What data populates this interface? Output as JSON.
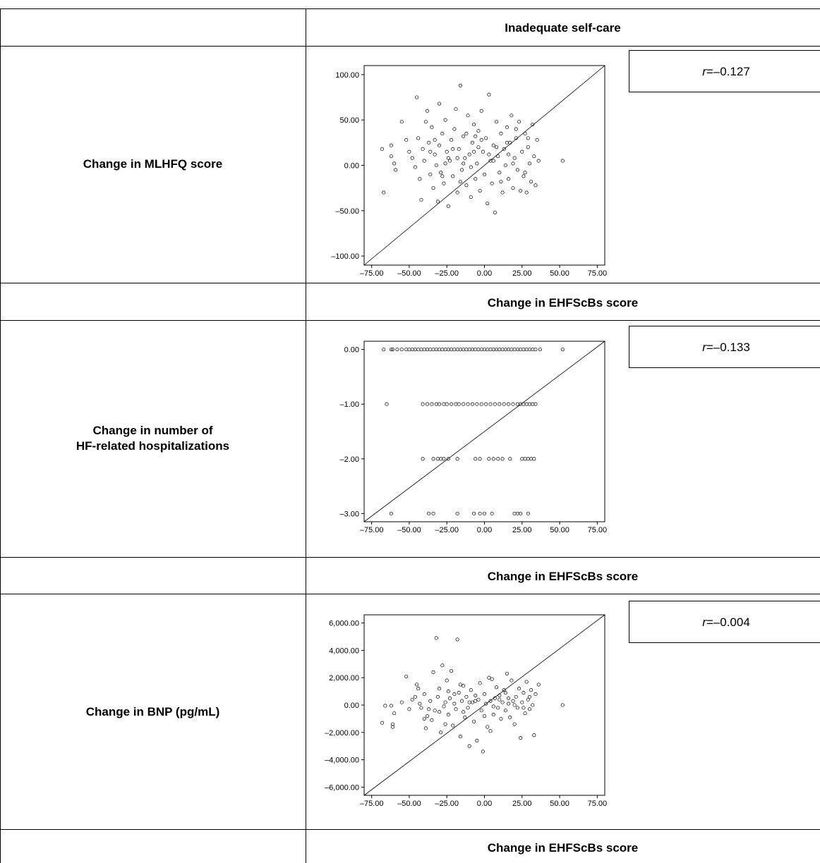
{
  "table": {
    "header_top": "Inadequate self-care",
    "x_axis_label": "Change in EHFScBs score",
    "rows": [
      {
        "label_lines": [
          "Change in MLHFQ score"
        ],
        "r_prefix": "r",
        "r_value": "=–0.127"
      },
      {
        "label_lines": [
          "Change in number of",
          "HF-related hospitalizations"
        ],
        "r_prefix": "r",
        "r_value": "=–0.133"
      },
      {
        "label_lines": [
          "Change in BNP (pg/mL)"
        ],
        "r_prefix": "r",
        "r_value": "=–0.004"
      }
    ]
  },
  "chart_data": [
    {
      "type": "scatter",
      "ylabel": "Change in MLHFQ score",
      "xlabel": "Change in EHFScBs score",
      "xlim": [
        -80,
        80
      ],
      "ylim": [
        -110,
        110
      ],
      "x_ticks": [
        "–75.00",
        "–50.00",
        "–25.00",
        "0.00",
        "25.00",
        "50.00",
        "75.00"
      ],
      "x_tick_values": [
        -75,
        -50,
        -25,
        0,
        25,
        50,
        75
      ],
      "y_ticks": [
        "100.00",
        "50.00",
        "0.00",
        "–50.00",
        "–100.00"
      ],
      "y_tick_values": [
        100,
        50,
        0,
        -50,
        -100
      ],
      "reference_line": "diagonal",
      "r": -0.127,
      "points": [
        [
          -67,
          -30
        ],
        [
          -68,
          18
        ],
        [
          -62,
          22
        ],
        [
          -62,
          10
        ],
        [
          -60,
          2
        ],
        [
          -59,
          -5
        ],
        [
          -55,
          48
        ],
        [
          -52,
          28
        ],
        [
          -50,
          15
        ],
        [
          -48,
          8
        ],
        [
          -45,
          75
        ],
        [
          -44,
          30
        ],
        [
          -43,
          -15
        ],
        [
          -42,
          -38
        ],
        [
          -41,
          18
        ],
        [
          -40,
          5
        ],
        [
          -38,
          60
        ],
        [
          -37,
          25
        ],
        [
          -36,
          -10
        ],
        [
          -35,
          42
        ],
        [
          -34,
          -25
        ],
        [
          -33,
          12
        ],
        [
          -32,
          0
        ],
        [
          -31,
          -40
        ],
        [
          -30,
          68
        ],
        [
          -30,
          22
        ],
        [
          -29,
          -8
        ],
        [
          -28,
          35
        ],
        [
          -27,
          -20
        ],
        [
          -26,
          50
        ],
        [
          -25,
          15
        ],
        [
          -24,
          -45
        ],
        [
          -23,
          5
        ],
        [
          -22,
          28
        ],
        [
          -21,
          -12
        ],
        [
          -20,
          40
        ],
        [
          -19,
          62
        ],
        [
          -18,
          -30
        ],
        [
          -17,
          18
        ],
        [
          -16,
          88
        ],
        [
          -15,
          -5
        ],
        [
          -14,
          32
        ],
        [
          -13,
          8
        ],
        [
          -12,
          -22
        ],
        [
          -11,
          55
        ],
        [
          -10,
          12
        ],
        [
          -9,
          -35
        ],
        [
          -8,
          25
        ],
        [
          -7,
          45
        ],
        [
          -6,
          -15
        ],
        [
          -5,
          2
        ],
        [
          -4,
          38
        ],
        [
          -3,
          -28
        ],
        [
          -2,
          60
        ],
        [
          -1,
          15
        ],
        [
          0,
          -10
        ],
        [
          1,
          30
        ],
        [
          2,
          -42
        ],
        [
          3,
          78
        ],
        [
          4,
          5
        ],
        [
          5,
          -20
        ],
        [
          6,
          22
        ],
        [
          7,
          -52
        ],
        [
          8,
          48
        ],
        [
          9,
          10
        ],
        [
          10,
          -8
        ],
        [
          11,
          35
        ],
        [
          12,
          -30
        ],
        [
          13,
          18
        ],
        [
          14,
          0
        ],
        [
          15,
          42
        ],
        [
          16,
          -15
        ],
        [
          17,
          25
        ],
        [
          18,
          55
        ],
        [
          19,
          -25
        ],
        [
          20,
          8
        ],
        [
          21,
          30
        ],
        [
          22,
          -5
        ],
        [
          23,
          48
        ],
        [
          24,
          -28
        ],
        [
          25,
          15
        ],
        [
          26,
          -12
        ],
        [
          27,
          35
        ],
        [
          28,
          -30
        ],
        [
          29,
          20
        ],
        [
          30,
          2
        ],
        [
          31,
          -18
        ],
        [
          32,
          45
        ],
        [
          33,
          10
        ],
        [
          34,
          -22
        ],
        [
          35,
          28
        ],
        [
          36,
          5
        ],
        [
          52,
          5
        ],
        [
          -46,
          -2
        ],
        [
          -39,
          48
        ],
        [
          -24,
          8
        ],
        [
          -14,
          2
        ],
        [
          -4,
          20
        ],
        [
          6,
          5
        ],
        [
          16,
          12
        ],
        [
          -33,
          28
        ],
        [
          -21,
          18
        ],
        [
          -9,
          -2
        ],
        [
          3,
          12
        ],
        [
          15,
          25
        ],
        [
          27,
          -8
        ],
        [
          -18,
          8
        ],
        [
          -7,
          15
        ],
        [
          11,
          -18
        ],
        [
          21,
          40
        ],
        [
          -28,
          -12
        ],
        [
          -12,
          35
        ],
        [
          -2,
          28
        ],
        [
          8,
          20
        ],
        [
          19,
          2
        ],
        [
          29,
          30
        ],
        [
          -36,
          15
        ],
        [
          -26,
          2
        ],
        [
          -16,
          -18
        ],
        [
          -6,
          32
        ]
      ]
    },
    {
      "type": "scatter",
      "ylabel": "Change in number of HF-related hospitalizations",
      "xlabel": "Change in EHFScBs score",
      "xlim": [
        -80,
        80
      ],
      "ylim": [
        -3.15,
        0.15
      ],
      "x_ticks": [
        "–75.00",
        "–50.00",
        "–25.00",
        "0.00",
        "25.00",
        "50.00",
        "75.00"
      ],
      "x_tick_values": [
        -75,
        -50,
        -25,
        0,
        25,
        50,
        75
      ],
      "y_ticks": [
        "0.00",
        "–1.00",
        "–2.00",
        "–3.00"
      ],
      "y_tick_values": [
        0,
        -1,
        -2,
        -3
      ],
      "reference_line": "diagonal",
      "r": -0.133,
      "points": [
        [
          -67,
          0
        ],
        [
          -62,
          0
        ],
        [
          -61,
          0
        ],
        [
          -58,
          0
        ],
        [
          -55,
          0
        ],
        [
          -52,
          0
        ],
        [
          -50,
          0
        ],
        [
          -48,
          0
        ],
        [
          -46,
          0
        ],
        [
          -44,
          0
        ],
        [
          -42,
          0
        ],
        [
          -40,
          0
        ],
        [
          -38,
          0
        ],
        [
          -36,
          0
        ],
        [
          -34,
          0
        ],
        [
          -32,
          0
        ],
        [
          -30,
          0
        ],
        [
          -28,
          0
        ],
        [
          -26,
          0
        ],
        [
          -24,
          0
        ],
        [
          -22,
          0
        ],
        [
          -20,
          0
        ],
        [
          -18,
          0
        ],
        [
          -16,
          0
        ],
        [
          -14,
          0
        ],
        [
          -12,
          0
        ],
        [
          -10,
          0
        ],
        [
          -8,
          0
        ],
        [
          -6,
          0
        ],
        [
          -4,
          0
        ],
        [
          -2,
          0
        ],
        [
          0,
          0
        ],
        [
          2,
          0
        ],
        [
          4,
          0
        ],
        [
          6,
          0
        ],
        [
          8,
          0
        ],
        [
          10,
          0
        ],
        [
          12,
          0
        ],
        [
          14,
          0
        ],
        [
          16,
          0
        ],
        [
          18,
          0
        ],
        [
          20,
          0
        ],
        [
          22,
          0
        ],
        [
          24,
          0
        ],
        [
          26,
          0
        ],
        [
          28,
          0
        ],
        [
          30,
          0
        ],
        [
          32,
          0
        ],
        [
          34,
          0
        ],
        [
          37,
          0
        ],
        [
          52,
          0
        ],
        [
          -65,
          -1
        ],
        [
          -41,
          -1
        ],
        [
          -38,
          -1
        ],
        [
          -35,
          -1
        ],
        [
          -32,
          -1
        ],
        [
          -30,
          -1
        ],
        [
          -27,
          -1
        ],
        [
          -25,
          -1
        ],
        [
          -22,
          -1
        ],
        [
          -19,
          -1
        ],
        [
          -17,
          -1
        ],
        [
          -14,
          -1
        ],
        [
          -11,
          -1
        ],
        [
          -8,
          -1
        ],
        [
          -5,
          -1
        ],
        [
          -2,
          -1
        ],
        [
          1,
          -1
        ],
        [
          4,
          -1
        ],
        [
          7,
          -1
        ],
        [
          10,
          -1
        ],
        [
          13,
          -1
        ],
        [
          16,
          -1
        ],
        [
          19,
          -1
        ],
        [
          22,
          -1
        ],
        [
          24,
          -1
        ],
        [
          26,
          -1
        ],
        [
          28,
          -1
        ],
        [
          30,
          -1
        ],
        [
          32,
          -1
        ],
        [
          34,
          -1
        ],
        [
          -41,
          -2
        ],
        [
          -34,
          -2
        ],
        [
          -31,
          -2
        ],
        [
          -29,
          -2
        ],
        [
          -27,
          -2
        ],
        [
          -24,
          -2
        ],
        [
          -18,
          -2
        ],
        [
          -6,
          -2
        ],
        [
          -3,
          -2
        ],
        [
          3,
          -2
        ],
        [
          6,
          -2
        ],
        [
          9,
          -2
        ],
        [
          12,
          -2
        ],
        [
          17,
          -2
        ],
        [
          25,
          -2
        ],
        [
          27,
          -2
        ],
        [
          29,
          -2
        ],
        [
          31,
          -2
        ],
        [
          33,
          -2
        ],
        [
          -62,
          -3
        ],
        [
          -37,
          -3
        ],
        [
          -34,
          -3
        ],
        [
          -18,
          -3
        ],
        [
          -7,
          -3
        ],
        [
          -3,
          -3
        ],
        [
          0,
          -3
        ],
        [
          5,
          -3
        ],
        [
          20,
          -3
        ],
        [
          22,
          -3
        ],
        [
          24,
          -3
        ],
        [
          29,
          -3
        ]
      ]
    },
    {
      "type": "scatter",
      "ylabel": "Change in BNP (pg/mL)",
      "xlabel": "Change in EHFScBs score",
      "xlim": [
        -80,
        80
      ],
      "ylim": [
        -6600,
        6600
      ],
      "x_ticks": [
        "–75.00",
        "–50.00",
        "–25.00",
        "0.00",
        "25.00",
        "50.00",
        "75.00"
      ],
      "x_tick_values": [
        -75,
        -50,
        -25,
        0,
        25,
        50,
        75
      ],
      "y_ticks": [
        "6,000.00",
        "4,000.00",
        "2,000.00",
        "0.00",
        "–2,000.00",
        "–4,000.00",
        "–6,000.00"
      ],
      "y_tick_values": [
        6000,
        4000,
        2000,
        0,
        -2000,
        -4000,
        -6000
      ],
      "reference_line": "diagonal",
      "r": -0.004,
      "points": [
        [
          -68,
          -1300
        ],
        [
          -66,
          -50
        ],
        [
          -62,
          -50
        ],
        [
          -61,
          -1400
        ],
        [
          -61,
          -1600
        ],
        [
          -60,
          -600
        ],
        [
          -55,
          200
        ],
        [
          -52,
          2100
        ],
        [
          -50,
          -300
        ],
        [
          -48,
          400
        ],
        [
          -45,
          1500
        ],
        [
          -44,
          1200
        ],
        [
          -43,
          100
        ],
        [
          -42,
          -200
        ],
        [
          -40,
          800
        ],
        [
          -39,
          -1700
        ],
        [
          -38,
          -800
        ],
        [
          -36,
          300
        ],
        [
          -35,
          -1100
        ],
        [
          -34,
          2400
        ],
        [
          -33,
          -400
        ],
        [
          -32,
          4900
        ],
        [
          -31,
          600
        ],
        [
          -30,
          1200
        ],
        [
          -29,
          -2000
        ],
        [
          -28,
          2900
        ],
        [
          -27,
          -100
        ],
        [
          -26,
          200
        ],
        [
          -25,
          1800
        ],
        [
          -24,
          -700
        ],
        [
          -23,
          500
        ],
        [
          -22,
          2500
        ],
        [
          -21,
          -1500
        ],
        [
          -20,
          100
        ],
        [
          -19,
          -300
        ],
        [
          -18,
          4800
        ],
        [
          -17,
          900
        ],
        [
          -16,
          -2300
        ],
        [
          -15,
          300
        ],
        [
          -14,
          1400
        ],
        [
          -13,
          -900
        ],
        [
          -12,
          600
        ],
        [
          -11,
          -200
        ],
        [
          -10,
          -3000
        ],
        [
          -9,
          1100
        ],
        [
          -8,
          200
        ],
        [
          -7,
          -1200
        ],
        [
          -6,
          700
        ],
        [
          -5,
          -2600
        ],
        [
          -4,
          400
        ],
        [
          -3,
          1600
        ],
        [
          -2,
          -400
        ],
        [
          -1,
          -3400
        ],
        [
          0,
          800
        ],
        [
          1,
          100
        ],
        [
          2,
          -1600
        ],
        [
          3,
          2000
        ],
        [
          4,
          300
        ],
        [
          5,
          1900
        ],
        [
          6,
          -700
        ],
        [
          7,
          500
        ],
        [
          8,
          1300
        ],
        [
          9,
          -200
        ],
        [
          10,
          700
        ],
        [
          11,
          -1000
        ],
        [
          12,
          200
        ],
        [
          13,
          1100
        ],
        [
          14,
          -400
        ],
        [
          15,
          2300
        ],
        [
          16,
          100
        ],
        [
          17,
          -900
        ],
        [
          18,
          1800
        ],
        [
          19,
          300
        ],
        [
          20,
          -1400
        ],
        [
          21,
          600
        ],
        [
          22,
          -200
        ],
        [
          23,
          1200
        ],
        [
          24,
          -2400
        ],
        [
          25,
          200
        ],
        [
          26,
          900
        ],
        [
          27,
          -600
        ],
        [
          28,
          1700
        ],
        [
          29,
          400
        ],
        [
          30,
          -300
        ],
        [
          31,
          1100
        ],
        [
          32,
          0
        ],
        [
          33,
          -2200
        ],
        [
          34,
          800
        ],
        [
          36,
          1500
        ],
        [
          52,
          0
        ],
        [
          -46,
          600
        ],
        [
          -37,
          -300
        ],
        [
          -24,
          1000
        ],
        [
          -14,
          -500
        ],
        [
          -6,
          300
        ],
        [
          6,
          -100
        ],
        [
          16,
          500
        ],
        [
          26,
          -200
        ],
        [
          -30,
          -500
        ],
        [
          -20,
          800
        ],
        [
          -10,
          200
        ],
        [
          0,
          -800
        ],
        [
          10,
          400
        ],
        [
          20,
          0
        ],
        [
          30,
          600
        ],
        [
          -40,
          -1000
        ],
        [
          -26,
          -1400
        ],
        [
          -16,
          1500
        ],
        [
          4,
          -1900
        ],
        [
          14,
          900
        ]
      ]
    }
  ]
}
